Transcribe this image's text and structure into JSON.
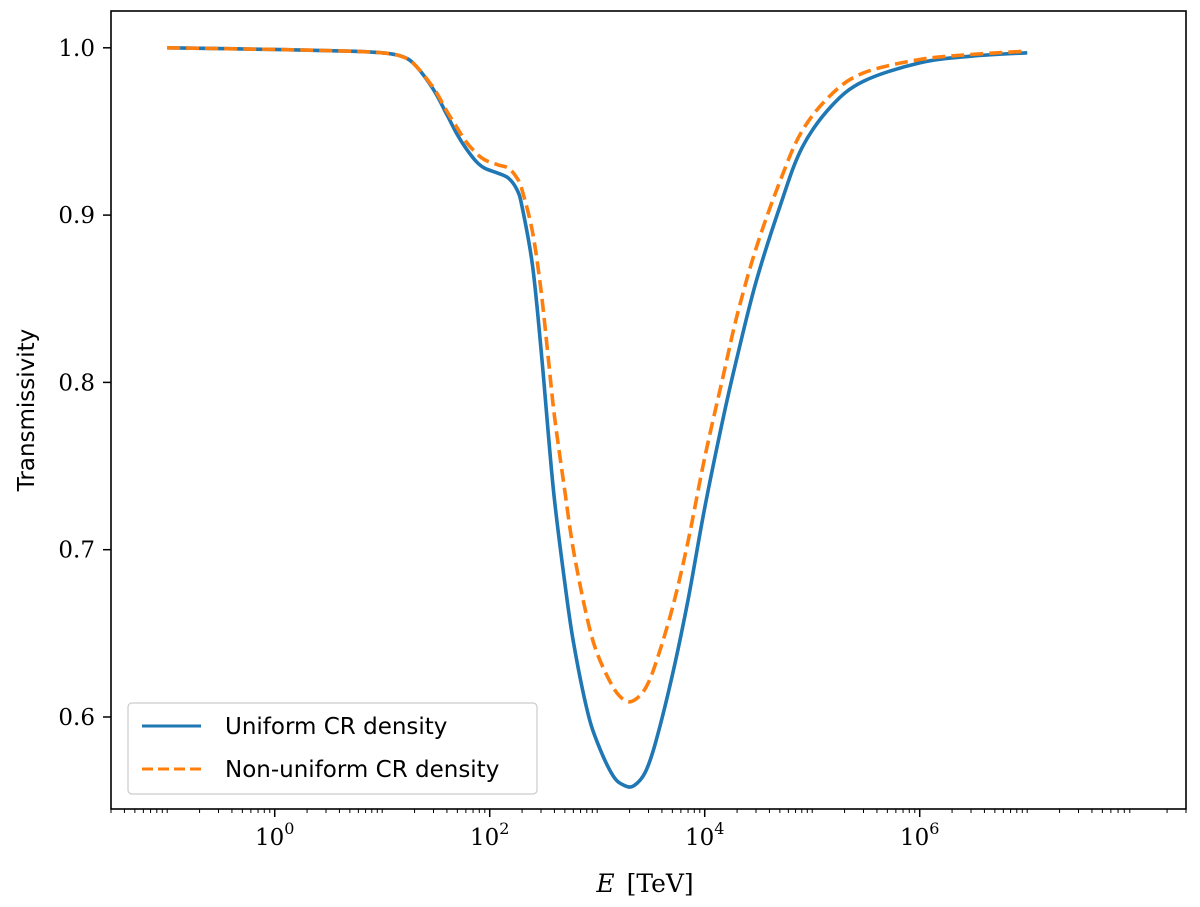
{
  "chart_data": {
    "type": "line",
    "xscale": "log",
    "xlabel_var": "E",
    "xlabel_unit": "[TeV]",
    "ylabel": "Transmissivity",
    "xlim": [
      0.03,
      300000000
    ],
    "ylim": [
      0.545,
      1.022
    ],
    "x_ticks": [
      {
        "value": 1,
        "base": "10",
        "exp": "0"
      },
      {
        "value": 100,
        "base": "10",
        "exp": "2"
      },
      {
        "value": 10000,
        "base": "10",
        "exp": "4"
      },
      {
        "value": 1000000,
        "base": "10",
        "exp": "6"
      }
    ],
    "y_ticks": [
      {
        "value": 0.6,
        "label": "0.6"
      },
      {
        "value": 0.7,
        "label": "0.7"
      },
      {
        "value": 0.8,
        "label": "0.8"
      },
      {
        "value": 0.9,
        "label": "0.9"
      },
      {
        "value": 1.0,
        "label": "1.0"
      }
    ],
    "grid": false,
    "legend_position": "lower-left",
    "series": [
      {
        "name": "Uniform CR density",
        "color": "#1f77b4",
        "style": "solid",
        "points": [
          [
            0.1,
            1.0
          ],
          [
            1,
            0.999
          ],
          [
            5,
            0.998
          ],
          [
            10,
            0.997
          ],
          [
            15,
            0.995
          ],
          [
            20,
            0.99
          ],
          [
            30,
            0.975
          ],
          [
            40,
            0.96
          ],
          [
            50,
            0.948
          ],
          [
            60,
            0.94
          ],
          [
            75,
            0.932
          ],
          [
            90,
            0.928
          ],
          [
            120,
            0.925
          ],
          [
            150,
            0.922
          ],
          [
            180,
            0.915
          ],
          [
            200,
            0.905
          ],
          [
            250,
            0.87
          ],
          [
            300,
            0.82
          ],
          [
            350,
            0.77
          ],
          [
            400,
            0.73
          ],
          [
            500,
            0.68
          ],
          [
            600,
            0.645
          ],
          [
            800,
            0.605
          ],
          [
            1000,
            0.585
          ],
          [
            1400,
            0.565
          ],
          [
            1800,
            0.559
          ],
          [
            2200,
            0.559
          ],
          [
            2800,
            0.567
          ],
          [
            3500,
            0.585
          ],
          [
            5000,
            0.625
          ],
          [
            7000,
            0.67
          ],
          [
            10000,
            0.725
          ],
          [
            15000,
            0.78
          ],
          [
            20000,
            0.815
          ],
          [
            30000,
            0.86
          ],
          [
            50000,
            0.905
          ],
          [
            80000,
            0.94
          ],
          [
            150000,
            0.965
          ],
          [
            300000,
            0.98
          ],
          [
            1000000,
            0.991
          ],
          [
            3000000,
            0.995
          ],
          [
            10000000,
            0.997
          ]
        ]
      },
      {
        "name": "Non-uniform CR density",
        "color": "#ff7f0e",
        "style": "dashed",
        "points": [
          [
            0.1,
            1.0
          ],
          [
            1,
            0.999
          ],
          [
            5,
            0.998
          ],
          [
            10,
            0.997
          ],
          [
            15,
            0.995
          ],
          [
            20,
            0.99
          ],
          [
            30,
            0.976
          ],
          [
            40,
            0.962
          ],
          [
            50,
            0.952
          ],
          [
            60,
            0.944
          ],
          [
            75,
            0.937
          ],
          [
            90,
            0.933
          ],
          [
            120,
            0.93
          ],
          [
            150,
            0.928
          ],
          [
            180,
            0.922
          ],
          [
            200,
            0.915
          ],
          [
            250,
            0.89
          ],
          [
            300,
            0.855
          ],
          [
            350,
            0.815
          ],
          [
            400,
            0.78
          ],
          [
            500,
            0.735
          ],
          [
            600,
            0.7
          ],
          [
            800,
            0.66
          ],
          [
            1000,
            0.638
          ],
          [
            1400,
            0.618
          ],
          [
            1800,
            0.61
          ],
          [
            2200,
            0.61
          ],
          [
            2800,
            0.617
          ],
          [
            3500,
            0.632
          ],
          [
            5000,
            0.665
          ],
          [
            7000,
            0.705
          ],
          [
            10000,
            0.755
          ],
          [
            15000,
            0.805
          ],
          [
            20000,
            0.84
          ],
          [
            30000,
            0.88
          ],
          [
            50000,
            0.92
          ],
          [
            80000,
            0.95
          ],
          [
            150000,
            0.972
          ],
          [
            300000,
            0.985
          ],
          [
            1000000,
            0.993
          ],
          [
            3000000,
            0.996
          ],
          [
            10000000,
            0.998
          ]
        ]
      }
    ]
  }
}
